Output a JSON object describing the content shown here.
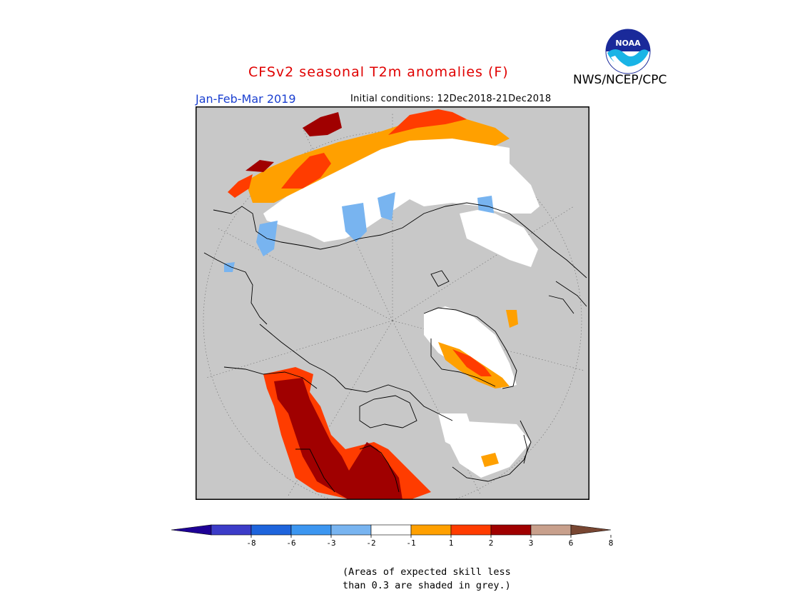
{
  "header": {
    "title": "CFSv2 seasonal T2m anomalies (F)",
    "title_color": "#e00000",
    "organization": "NWS/NCEP/CPC",
    "season": "Jan-Feb-Mar 2019",
    "season_color": "#1a3fd0",
    "initial_conditions": "Initial conditions: 12Dec2018-21Dec2018",
    "logo_text": "NOAA",
    "logo_icon": "noaa-logo-icon"
  },
  "map": {
    "projection": "north-polar-stereographic",
    "background_color": "#c8c8c8",
    "skill_mask_color": "#c8c8c8"
  },
  "legend": {
    "colors": [
      "#1e0096",
      "#3c3cc8",
      "#1e64dc",
      "#3c96f0",
      "#78b4f0",
      "#ffffff",
      "#ffa000",
      "#ff3c00",
      "#a00000",
      "#c8a08c",
      "#784632"
    ],
    "tick_labels": [
      "-8",
      "-6",
      "-3",
      "-2",
      "-1",
      "1",
      "2",
      "3",
      "6",
      "8"
    ]
  },
  "footnote": {
    "line1": "(Areas of expected skill less",
    "line2": "than 0.3 are shaded in grey.)"
  }
}
